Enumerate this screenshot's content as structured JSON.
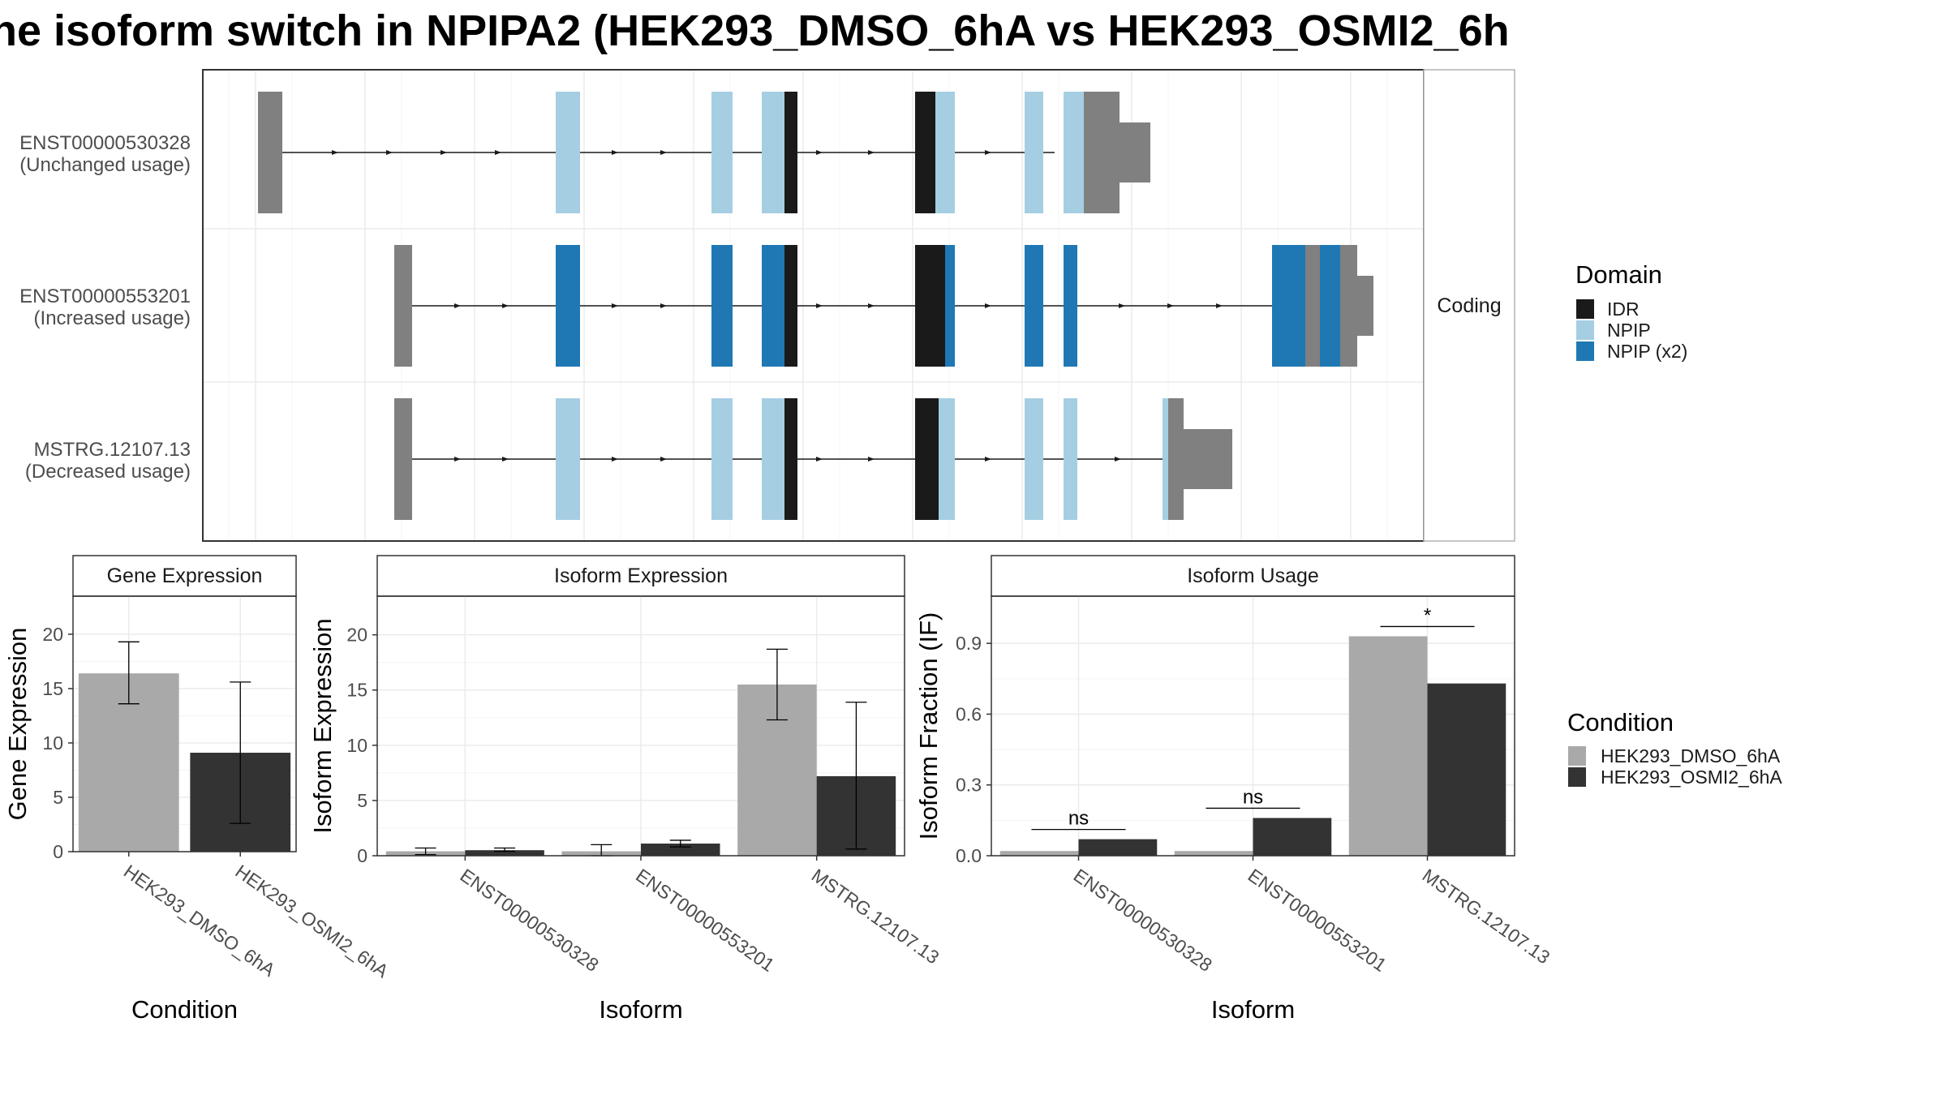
{
  "title": "ne isoform switch in NPIPA2 (HEK293_DMSO_6hA vs HEK293_OSMI2_6h",
  "colors": {
    "idr": "#1a1a1a",
    "npip": "#a6cee3",
    "npip_x2": "#1f78b4",
    "utr": "#808080",
    "dmso": "#a9a9a9",
    "osmi2": "#333333"
  },
  "structure": {
    "facet_label": "Coding",
    "isoforms": [
      {
        "name": "ENST00000530328",
        "usage": "(Unchanged usage)"
      },
      {
        "name": "ENST00000553201",
        "usage": "(Increased usage)"
      },
      {
        "name": "MSTRG.12107.13",
        "usage": "(Decreased usage)"
      }
    ]
  },
  "domain_legend": {
    "title": "Domain",
    "items": [
      {
        "label": "IDR",
        "color": "#1a1a1a"
      },
      {
        "label": "NPIP",
        "color": "#a6cee3"
      },
      {
        "label": "NPIP (x2)",
        "color": "#1f78b4"
      }
    ]
  },
  "condition_legend": {
    "title": "Condition",
    "items": [
      {
        "label": "HEK293_DMSO_6hA",
        "color": "#a9a9a9"
      },
      {
        "label": "HEK293_OSMI2_6hA",
        "color": "#333333"
      }
    ]
  },
  "chart_data": [
    {
      "type": "bar",
      "title": "Gene Expression",
      "xlabel": "Condition",
      "ylabel": "Gene Expression",
      "categories": [
        "HEK293_DMSO_6hA",
        "HEK293_OSMI2_6hA"
      ],
      "values": [
        16.4,
        9.1
      ],
      "error_low": [
        13.6,
        2.6
      ],
      "error_high": [
        19.3,
        15.6
      ],
      "ylim": [
        0,
        23.5
      ],
      "yticks": [
        0,
        5,
        10,
        15,
        20
      ]
    },
    {
      "type": "bar",
      "title": "Isoform Expression",
      "xlabel": "Isoform",
      "ylabel": "Isoform Expression",
      "categories": [
        "ENST00000530328",
        "ENST00000553201",
        "MSTRG.12107.13"
      ],
      "series": [
        {
          "name": "HEK293_DMSO_6hA",
          "values": [
            0.4,
            0.4,
            15.5
          ],
          "error_low": [
            0.1,
            0.0,
            12.3
          ],
          "error_high": [
            0.7,
            1.0,
            18.7
          ]
        },
        {
          "name": "HEK293_OSMI2_6hA",
          "values": [
            0.5,
            1.1,
            7.2
          ],
          "error_low": [
            0.4,
            0.8,
            0.6
          ],
          "error_high": [
            0.7,
            1.4,
            13.9
          ]
        }
      ],
      "ylim": [
        0,
        23.5
      ],
      "yticks": [
        0,
        5,
        10,
        15,
        20
      ]
    },
    {
      "type": "bar",
      "title": "Isoform Usage",
      "xlabel": "Isoform",
      "ylabel": "Isoform Fraction (IF)",
      "categories": [
        "ENST00000530328",
        "ENST00000553201",
        "MSTRG.12107.13"
      ],
      "series": [
        {
          "name": "HEK293_DMSO_6hA",
          "values": [
            0.02,
            0.02,
            0.93
          ]
        },
        {
          "name": "HEK293_OSMI2_6hA",
          "values": [
            0.07,
            0.16,
            0.73
          ]
        }
      ],
      "significance": [
        "ns",
        "ns",
        "*"
      ],
      "ylim": [
        0,
        1.1
      ],
      "yticks": [
        "0.0",
        "0.3",
        "0.6",
        "0.9"
      ]
    }
  ]
}
